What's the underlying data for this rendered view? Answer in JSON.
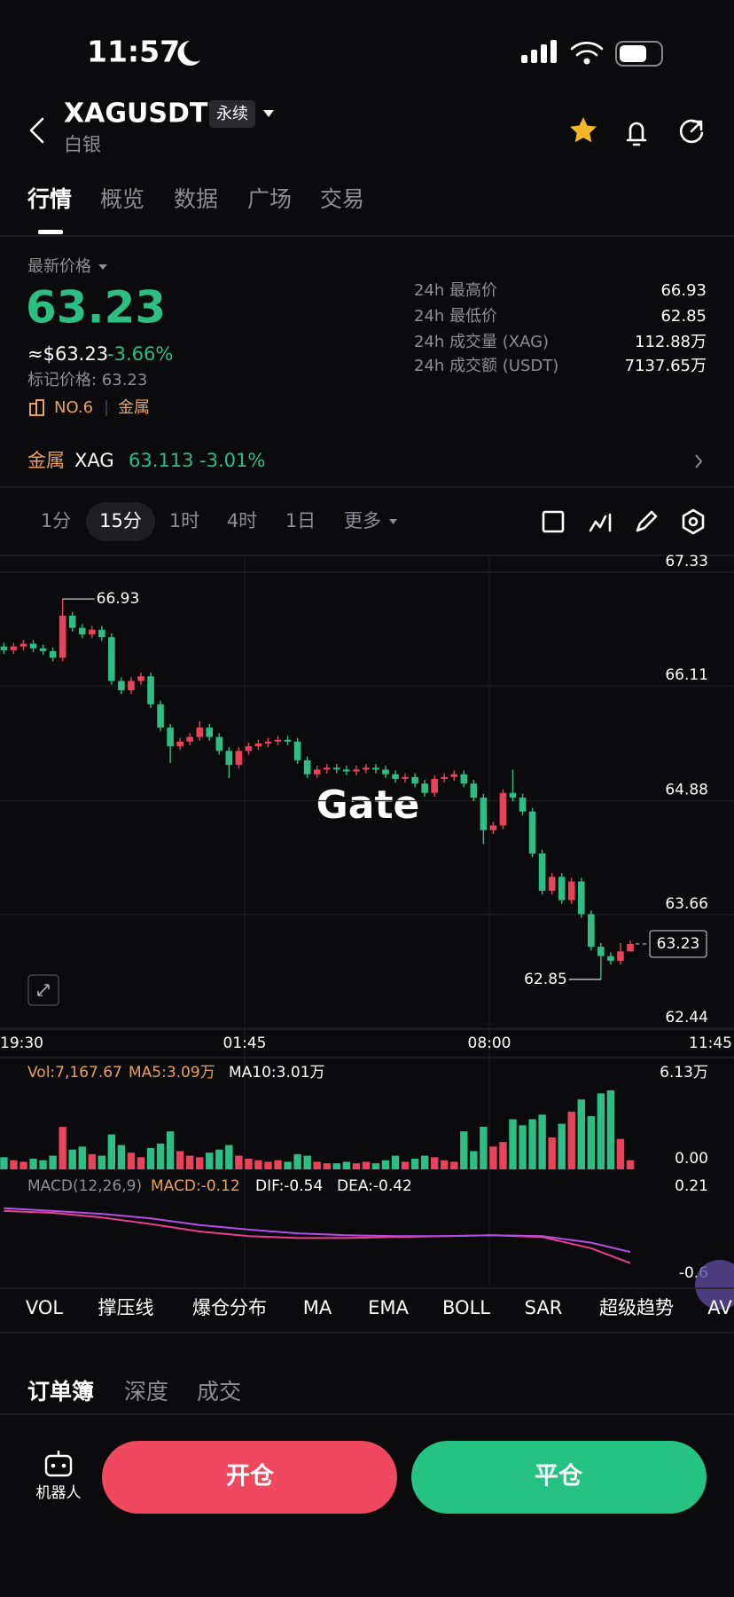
{
  "status_bar": {
    "time": "11:57"
  },
  "header": {
    "symbol": "XAGUSDT",
    "badge": "永续",
    "subtitle": "白银"
  },
  "tabs": [
    "行情",
    "概览",
    "数据",
    "广场",
    "交易"
  ],
  "price_panel": {
    "label": "最新价格",
    "price": "63.23",
    "usd_price": "≈$63.23",
    "change": "-3.66%",
    "mark_price": "标记价格: 63.23",
    "rank": "NO.6",
    "sector": "金属"
  },
  "stats": [
    [
      "24h 最高价",
      "66.93"
    ],
    [
      "24h 最低价",
      "62.85"
    ],
    [
      "24h 成交量 (XAG)",
      "112.88万"
    ],
    [
      "24h 成交额 (USDT)",
      "7137.65万"
    ]
  ],
  "reference": {
    "sector": "金属",
    "symbol": "XAG",
    "price": "63.113",
    "change": "-3.01%"
  },
  "timeframes": [
    "1分",
    "15分",
    "1时",
    "4时",
    "1日",
    "更多"
  ],
  "chart_data": [
    {
      "type": "candlestick",
      "watermark": "Gate",
      "grid": true,
      "up_color": "#e8435a",
      "down_color": "#2ebd85",
      "xlim": [
        0,
        75
      ],
      "xticks": [
        {
          "value": 0,
          "label": "19:30"
        },
        {
          "value": 25,
          "label": "01:45"
        },
        {
          "value": 50,
          "label": "08:00"
        },
        {
          "value": 75,
          "label": "11:45"
        }
      ],
      "ylim": [
        62.44,
        67.33
      ],
      "yticks": [
        67.33,
        66.11,
        64.88,
        63.66,
        62.44
      ],
      "high_label": 66.93,
      "low_label": 62.85,
      "last_price": 63.23,
      "candles": [
        [
          66.42,
          66.46,
          66.34,
          66.38
        ],
        [
          66.38,
          66.46,
          66.34,
          66.42
        ],
        [
          66.42,
          66.49,
          66.38,
          66.45
        ],
        [
          66.45,
          66.49,
          66.36,
          66.4
        ],
        [
          66.4,
          66.44,
          66.33,
          66.37
        ],
        [
          66.37,
          66.41,
          66.26,
          66.3
        ],
        [
          66.3,
          66.93,
          66.26,
          66.75
        ],
        [
          66.75,
          66.79,
          66.58,
          66.62
        ],
        [
          66.62,
          66.66,
          66.51,
          66.55
        ],
        [
          66.55,
          66.64,
          66.51,
          66.6
        ],
        [
          66.6,
          66.64,
          66.48,
          66.52
        ],
        [
          66.52,
          66.56,
          66.01,
          66.05
        ],
        [
          66.05,
          66.09,
          65.91,
          65.95
        ],
        [
          65.95,
          66.09,
          65.91,
          66.05
        ],
        [
          66.05,
          66.14,
          66.01,
          66.1
        ],
        [
          66.1,
          66.14,
          65.76,
          65.8
        ],
        [
          65.8,
          65.84,
          65.51,
          65.55
        ],
        [
          65.55,
          65.59,
          65.17,
          65.35
        ],
        [
          65.35,
          65.44,
          65.31,
          65.4
        ],
        [
          65.4,
          65.49,
          65.36,
          65.45
        ],
        [
          65.45,
          65.62,
          65.41,
          65.55
        ],
        [
          65.55,
          65.59,
          65.41,
          65.45
        ],
        [
          65.45,
          65.49,
          65.26,
          65.3
        ],
        [
          65.3,
          65.34,
          65.01,
          65.15
        ],
        [
          65.15,
          65.34,
          65.11,
          65.3
        ],
        [
          65.3,
          65.39,
          65.26,
          65.35
        ],
        [
          65.35,
          65.42,
          65.31,
          65.38
        ],
        [
          65.38,
          65.44,
          65.34,
          65.4
        ],
        [
          65.4,
          65.46,
          65.36,
          65.42
        ],
        [
          65.42,
          65.46,
          65.36,
          65.4
        ],
        [
          65.4,
          65.44,
          65.16,
          65.2
        ],
        [
          65.2,
          65.24,
          65.01,
          65.05
        ],
        [
          65.05,
          65.14,
          65.01,
          65.1
        ],
        [
          65.1,
          65.16,
          65.06,
          65.12
        ],
        [
          65.12,
          65.16,
          65.06,
          65.1
        ],
        [
          65.1,
          65.14,
          65.04,
          65.08
        ],
        [
          65.08,
          65.14,
          65.04,
          65.1
        ],
        [
          65.1,
          65.16,
          65.06,
          65.12
        ],
        [
          65.12,
          65.16,
          65.06,
          65.1
        ],
        [
          65.1,
          65.14,
          65.01,
          65.05
        ],
        [
          65.05,
          65.09,
          64.96,
          65.0
        ],
        [
          65.0,
          65.06,
          64.96,
          65.02
        ],
        [
          65.02,
          65.06,
          64.91,
          64.95
        ],
        [
          64.95,
          64.99,
          64.81,
          64.85
        ],
        [
          64.85,
          65.04,
          64.81,
          65.0
        ],
        [
          65.0,
          65.06,
          64.96,
          65.02
        ],
        [
          65.02,
          65.09,
          64.98,
          65.05
        ],
        [
          65.05,
          65.09,
          64.91,
          64.95
        ],
        [
          64.95,
          64.99,
          64.76,
          64.8
        ],
        [
          64.8,
          64.84,
          64.3,
          64.45
        ],
        [
          64.45,
          64.54,
          64.41,
          64.5
        ],
        [
          64.5,
          64.89,
          64.46,
          64.85
        ],
        [
          64.85,
          65.1,
          64.76,
          64.8
        ],
        [
          64.8,
          64.84,
          64.61,
          64.65
        ],
        [
          64.65,
          64.69,
          64.16,
          64.2
        ],
        [
          64.2,
          64.24,
          63.76,
          63.8
        ],
        [
          63.8,
          63.99,
          63.76,
          63.95
        ],
        [
          63.95,
          63.99,
          63.66,
          63.7
        ],
        [
          63.7,
          63.94,
          63.66,
          63.9
        ],
        [
          63.9,
          63.94,
          63.51,
          63.55
        ],
        [
          63.55,
          63.59,
          63.16,
          63.2
        ],
        [
          63.2,
          63.24,
          62.85,
          63.1
        ],
        [
          63.1,
          63.14,
          63.01,
          63.05
        ],
        [
          63.05,
          63.24,
          63.01,
          63.15
        ],
        [
          63.15,
          63.27,
          63.19,
          63.23
        ]
      ]
    },
    {
      "type": "bar",
      "legend": [
        "Vol:7,167.67",
        "MA5:3.09万",
        "MA10:3.01万"
      ],
      "ylim": [
        0,
        6.13
      ],
      "yticks": [
        {
          "value": 6.13,
          "label": "6.13万"
        },
        {
          "value": 0,
          "label": "0.00"
        }
      ],
      "values": [
        0.8,
        0.6,
        0.5,
        0.7,
        0.6,
        0.9,
        2.8,
        1.3,
        1.5,
        1.0,
        0.9,
        2.3,
        1.6,
        1.1,
        0.8,
        1.4,
        1.7,
        2.5,
        1.2,
        0.9,
        0.8,
        1.1,
        1.3,
        1.6,
        0.9,
        0.7,
        0.6,
        0.5,
        0.6,
        0.5,
        1.0,
        0.9,
        0.5,
        0.4,
        0.4,
        0.5,
        0.4,
        0.5,
        0.4,
        0.6,
        0.9,
        0.5,
        0.7,
        0.9,
        0.8,
        0.6,
        0.5,
        2.5,
        1.2,
        2.8,
        1.5,
        1.8,
        3.3,
        2.9,
        3.3,
        3.6,
        2.1,
        3.0,
        3.8,
        4.6,
        3.5,
        5.0,
        5.2,
        2.0,
        0.6
      ]
    },
    {
      "type": "line",
      "legend": [
        "MACD(12,26,9)",
        "MACD:-0.12",
        "DIF:-0.54",
        "DEA:-0.42"
      ],
      "ylim": [
        -0.6,
        0.21
      ],
      "yticks": [
        0.21,
        -0.6
      ],
      "x": [
        0,
        5,
        10,
        15,
        20,
        25,
        30,
        35,
        40,
        45,
        50,
        55,
        60,
        64
      ],
      "series": [
        {
          "color": "#e8408f",
          "values": [
            0.02,
            0.0,
            -0.05,
            -0.12,
            -0.2,
            -0.25,
            -0.27,
            -0.27,
            -0.26,
            -0.25,
            -0.24,
            -0.26,
            -0.38,
            -0.54
          ]
        },
        {
          "color": "#b24fe6",
          "values": [
            0.05,
            0.02,
            -0.01,
            -0.06,
            -0.13,
            -0.18,
            -0.22,
            -0.24,
            -0.25,
            -0.25,
            -0.24,
            -0.25,
            -0.32,
            -0.42
          ]
        }
      ]
    }
  ],
  "indicators": [
    "VOL",
    "撑压线",
    "爆仓分布",
    "MA",
    "EMA",
    "BOLL",
    "SAR",
    "超级趋势",
    "AV"
  ],
  "orderbook_tabs": [
    "订单簿",
    "深度",
    "成交"
  ],
  "footer": {
    "bot": "机器人",
    "open": "开仓",
    "close": "平仓"
  }
}
